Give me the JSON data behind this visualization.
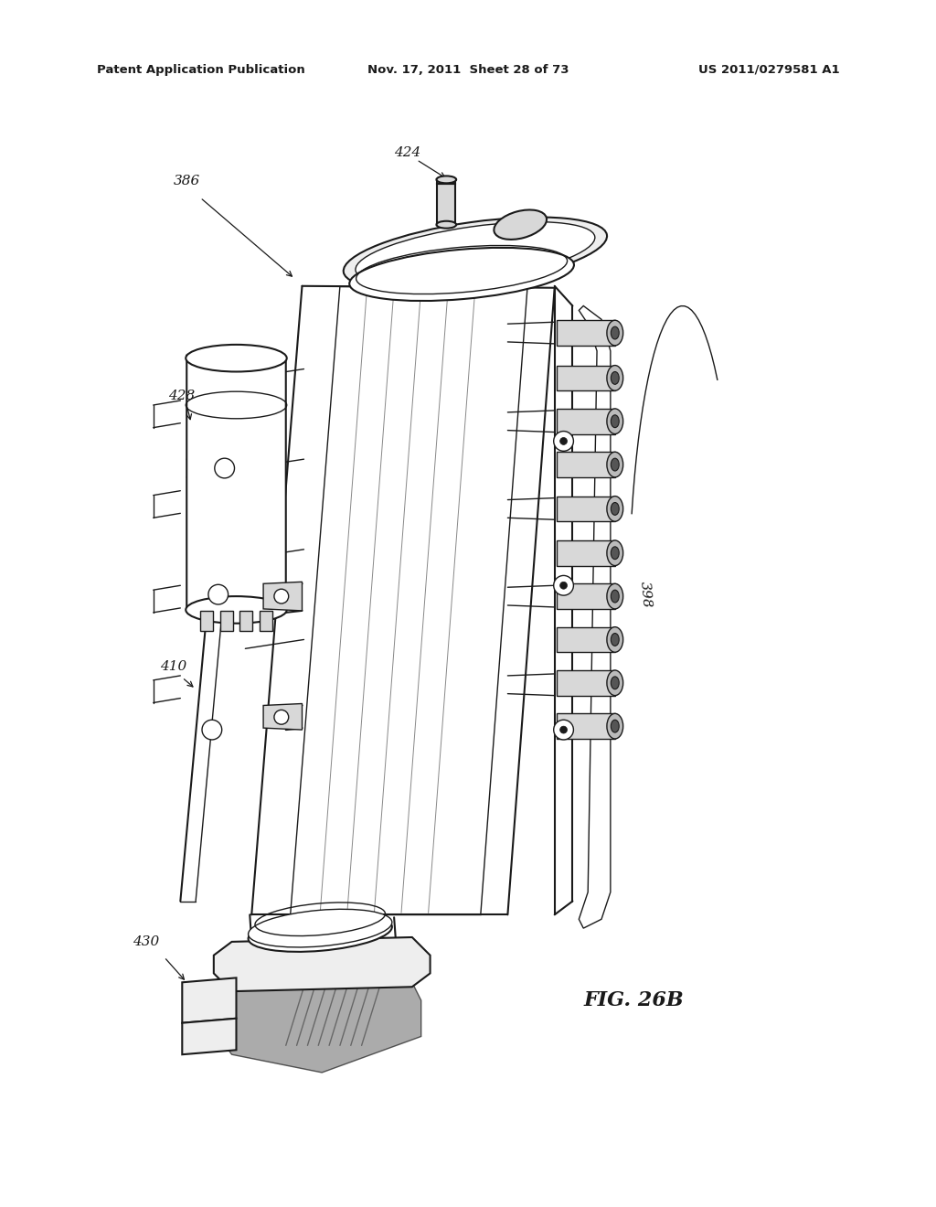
{
  "bg_color": "#ffffff",
  "header_left": "Patent Application Publication",
  "header_mid": "Nov. 17, 2011  Sheet 28 of 73",
  "header_right": "US 2011/0279581 A1",
  "fig_label": "FIG. 26B",
  "line_color": "#1a1a1a",
  "gray_fill": "#d8d8d8",
  "light_gray": "#eeeeee",
  "mid_gray": "#bbbbbb"
}
